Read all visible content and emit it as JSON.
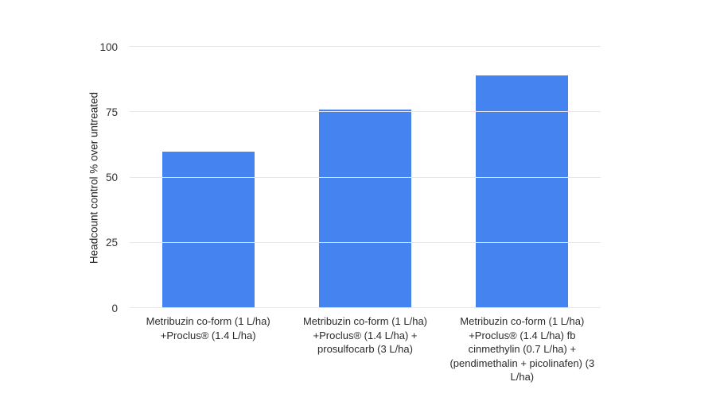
{
  "chart_data": {
    "type": "bar",
    "title": "",
    "xlabel": "",
    "ylabel": "Headcount control % over untreated",
    "ylim": [
      0,
      100
    ],
    "y_ticks": [
      0,
      25,
      50,
      75,
      100
    ],
    "grid": "horizontal",
    "legend_position": "none",
    "categories": [
      "Metribuzin co-form (1 L/ha) +Proclus® (1.4 L/ha)",
      "Metribuzin co-form (1 L/ha) +Proclus® (1.4 L/ha) + prosulfocarb (3 L/ha)",
      "Metribuzin co-form (1 L/ha) +Proclus® (1.4 L/ha) fb cinmethylin (0.7 L/ha) + (pendimethalin + picolinafen) (3 L/ha)"
    ],
    "values": [
      60,
      76,
      89
    ],
    "colors": {
      "bar": "#4584f0",
      "gridline": "#e7e7e7",
      "tick_text": "#333333",
      "label_text": "#2b2b2b",
      "background": "#ffffff"
    }
  }
}
